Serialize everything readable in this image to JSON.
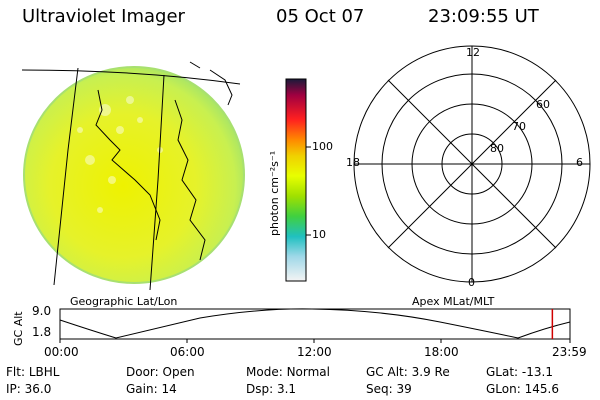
{
  "header": {
    "title": "Ultraviolet Imager",
    "date": "05 Oct 07",
    "time": "23:09:55 UT"
  },
  "colorbar": {
    "label": "photon cm⁻²s⁻¹",
    "ticks": [
      "100",
      "10"
    ]
  },
  "polar": {
    "mlt_labels": {
      "top": "12",
      "left": "18",
      "right": "6",
      "bottom": "0"
    },
    "lat_labels": [
      "60",
      "70",
      "80"
    ]
  },
  "map_labels": {
    "left": "Geographic Lat/Lon",
    "right": "Apex MLat/MLT"
  },
  "altitude_plot": {
    "ylabel": "GC Alt",
    "yticks": [
      "9.0",
      "1.8"
    ],
    "xticks": [
      "00:00",
      "06:00",
      "12:00",
      "18:00",
      "23:59"
    ],
    "current_marker_hours": 23.17,
    "marker_color": "#d00000"
  },
  "status": {
    "row1": [
      {
        "label": "Flt:",
        "value": "LBHL"
      },
      {
        "label": "Door:",
        "value": "Open"
      },
      {
        "label": "Mode:",
        "value": "Normal"
      },
      {
        "label": "GC Alt:",
        "value": "3.9 Re"
      },
      {
        "label": "GLat:",
        "value": "-13.1"
      }
    ],
    "row2": [
      {
        "label": "IP:",
        "value": "36.0"
      },
      {
        "label": "Gain:",
        "value": "14"
      },
      {
        "label": "Dsp:",
        "value": "3.1"
      },
      {
        "label": "Seq:",
        "value": "39"
      },
      {
        "label": "GLon:",
        "value": "145.6"
      }
    ]
  }
}
